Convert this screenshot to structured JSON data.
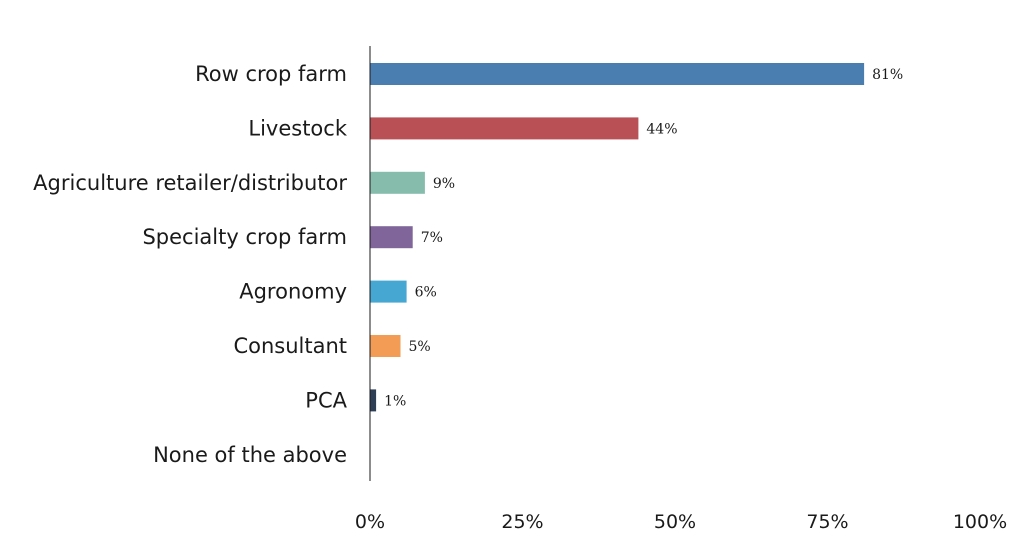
{
  "chart_data": {
    "type": "bar",
    "orientation": "horizontal",
    "categories": [
      "Row crop farm",
      "Livestock",
      "Agriculture retailer/distributor",
      "Specialty crop farm",
      "Agronomy",
      "Consultant",
      "PCA",
      "None of the above"
    ],
    "values": [
      81,
      44,
      9,
      7,
      6,
      5,
      1,
      0
    ],
    "data_labels": [
      "81%",
      "44%",
      "9%",
      "7%",
      "6%",
      "5%",
      "1%",
      ""
    ],
    "colors": [
      "#4a7eb0",
      "#b85055",
      "#86bcac",
      "#80659a",
      "#47a7d3",
      "#f29c55",
      "#2d3e55",
      "#cccccc"
    ],
    "x_ticks": [
      0,
      25,
      50,
      75,
      100
    ],
    "x_tick_labels": [
      "0%",
      "25%",
      "50%",
      "75%",
      "100%"
    ],
    "xlim": [
      0,
      100
    ],
    "title": "",
    "xlabel": "",
    "ylabel": "",
    "grid": false,
    "legend": "none"
  }
}
